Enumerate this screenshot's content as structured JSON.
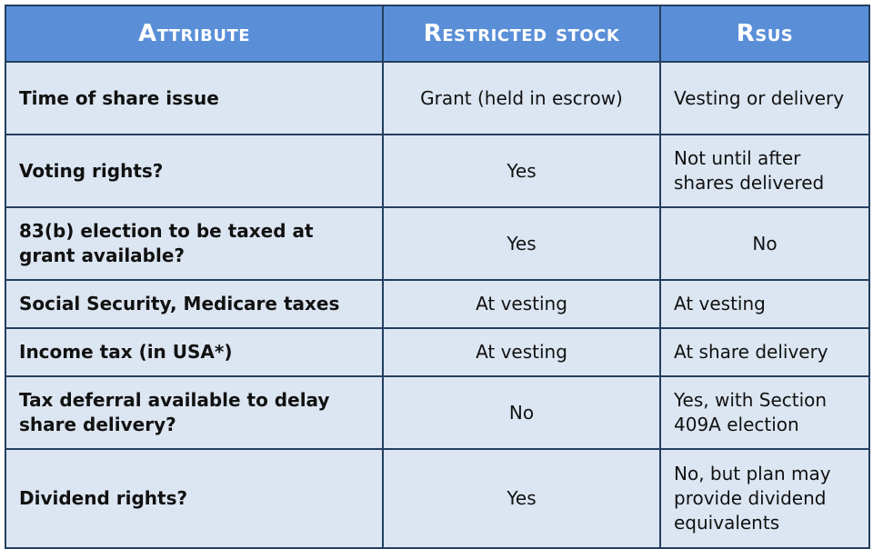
{
  "table": {
    "header": [
      "Attribute",
      "Restricted stock",
      "Rsus"
    ],
    "rows": [
      [
        "Time of share issue",
        "Grant (held in escrow)",
        "Vesting or delivery"
      ],
      [
        "Voting rights?",
        "Yes",
        "Not until after shares delivered"
      ],
      [
        "83(b) election to be taxed at grant available?",
        "Yes",
        "No"
      ],
      [
        "Social Security, Medicare taxes",
        "At vesting",
        "At vesting"
      ],
      [
        "Income tax (in USA*)",
        "At vesting",
        "At share delivery"
      ],
      [
        "Tax deferral available to delay share delivery?",
        "No",
        "Yes, with Section 409A election"
      ],
      [
        "Dividend rights?",
        "Yes",
        "No, but plan may provide dividend equivalents"
      ]
    ]
  }
}
